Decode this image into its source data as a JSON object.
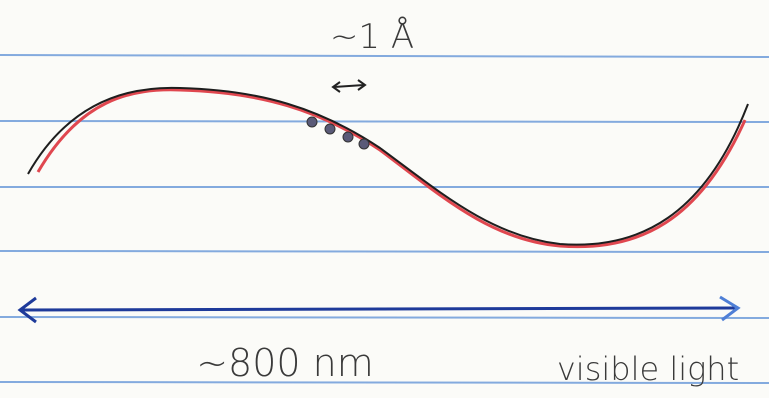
{
  "labels": {
    "atom_scale": "~1 Å",
    "light_scale": "~800 nm",
    "caption": "visible light"
  }
}
